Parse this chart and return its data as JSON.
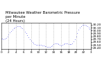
{
  "title_line1": "Milwaukee Weather Barometric Pressure",
  "title_line2": "per Minute",
  "title_line3": "(24 Hours)",
  "title_fontsize": 3.8,
  "bg_color": "#ffffff",
  "plot_color": "#0000dd",
  "marker": ".",
  "markersize": 0.8,
  "linestyle": "none",
  "yticks": [
    29.4,
    29.5,
    29.6,
    29.7,
    29.8,
    29.9,
    30.0,
    30.1,
    30.2
  ],
  "ytick_labels": [
    "29.40",
    "29.50",
    "29.60",
    "29.70",
    "29.80",
    "29.90",
    "30.00",
    "30.10",
    "30.20"
  ],
  "ytick_fontsize": 3.2,
  "xtick_fontsize": 3.0,
  "ylim": [
    29.35,
    30.27
  ],
  "xlim": [
    0,
    1440
  ],
  "grid_color": "#999999",
  "grid_style": ":",
  "grid_alpha": 1.0,
  "grid_linewidth": 0.5,
  "xtick_positions": [
    0,
    120,
    240,
    360,
    480,
    600,
    720,
    840,
    960,
    1080,
    1200,
    1320,
    1440
  ],
  "xtick_labels": [
    "0",
    "2",
    "4",
    "6",
    "8",
    "10",
    "12",
    "14",
    "16",
    "18",
    "20",
    "22",
    "3"
  ],
  "data_x": [
    0,
    20,
    40,
    60,
    80,
    100,
    120,
    140,
    160,
    180,
    200,
    220,
    240,
    260,
    280,
    300,
    320,
    340,
    360,
    380,
    400,
    420,
    440,
    460,
    480,
    500,
    520,
    540,
    560,
    580,
    600,
    620,
    640,
    660,
    680,
    700,
    720,
    740,
    760,
    780,
    800,
    820,
    840,
    860,
    880,
    900,
    920,
    940,
    960,
    980,
    1000,
    1020,
    1040,
    1060,
    1080,
    1100,
    1120,
    1140,
    1160,
    1180,
    1200,
    1220,
    1240,
    1260,
    1280,
    1300,
    1320,
    1340,
    1360,
    1380,
    1400,
    1420,
    1440
  ],
  "data_y": [
    29.73,
    29.71,
    29.7,
    29.72,
    29.75,
    29.8,
    29.87,
    29.93,
    29.98,
    30.03,
    30.07,
    30.1,
    30.13,
    30.15,
    30.16,
    30.14,
    30.11,
    30.07,
    30.02,
    29.97,
    29.9,
    29.83,
    29.76,
    29.7,
    29.65,
    29.6,
    29.56,
    29.53,
    29.51,
    29.5,
    29.5,
    29.51,
    29.5,
    29.49,
    29.48,
    29.46,
    29.45,
    29.44,
    29.43,
    29.44,
    29.46,
    29.49,
    29.52,
    29.54,
    29.55,
    29.54,
    29.52,
    29.5,
    29.49,
    29.5,
    29.52,
    29.55,
    29.56,
    29.55,
    29.53,
    29.52,
    29.53,
    29.56,
    29.62,
    29.7,
    29.8,
    29.92,
    30.02,
    30.1,
    30.16,
    30.19,
    30.2,
    30.19,
    30.17,
    30.14,
    30.1,
    30.05,
    30.0
  ]
}
